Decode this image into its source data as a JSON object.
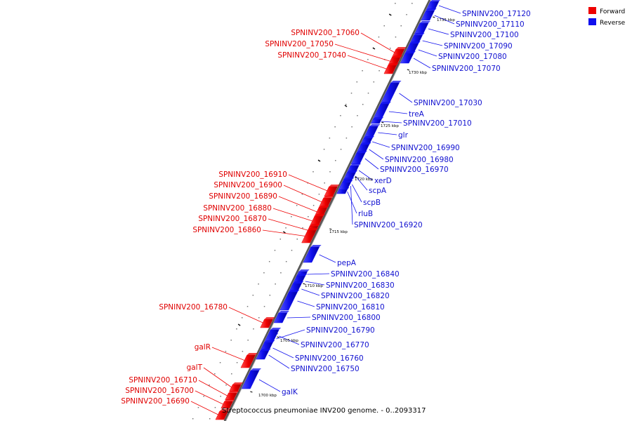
{
  "legend": {
    "forward_label": "Forward",
    "reverse_label": "Reverse",
    "forward_color": "#ee0000",
    "reverse_color": "#1010ee"
  },
  "caption": "Streptococcus pneumoniae INV200 genome. - 0..2093317",
  "ticks": [
    {
      "label": "1735 kbp"
    },
    {
      "label": "1730 kbp"
    },
    {
      "label": "1725 kbp"
    },
    {
      "label": "1720 kbp"
    },
    {
      "label": "1715 kbp"
    },
    {
      "label": "1710 kbp"
    },
    {
      "label": "1705 kbp"
    },
    {
      "label": "1700 kbp"
    }
  ],
  "forward_genes": [
    "SPNINV200_17060",
    "SPNINV200_17050",
    "SPNINV200_17040",
    "SPNINV200_16910",
    "SPNINV200_16900",
    "SPNINV200_16890",
    "SPNINV200_16880",
    "SPNINV200_16870",
    "SPNINV200_16860",
    "SPNINV200_16780",
    "galR",
    "galT",
    "SPNINV200_16710",
    "SPNINV200_16700",
    "SPNINV200_16690"
  ],
  "reverse_genes": [
    "SPNINV200_17120",
    "SPNINV200_17110",
    "SPNINV200_17100",
    "SPNINV200_17090",
    "SPNINV200_17080",
    "SPNINV200_17070",
    "SPNINV200_17030",
    "treA",
    "SPNINV200_17010",
    "glr",
    "SPNINV200_16990",
    "SPNINV200_16980",
    "SPNINV200_16970",
    "xerD",
    "scpA",
    "scpB",
    "rluB",
    "SPNINV200_16920",
    "pepA",
    "SPNINV200_16840",
    "SPNINV200_16830",
    "SPNINV200_16820",
    "SPNINV200_16810",
    "SPNINV200_16800",
    "SPNINV200_16790",
    "SPNINV200_16770",
    "SPNINV200_16760",
    "SPNINV200_16750",
    "galK"
  ]
}
